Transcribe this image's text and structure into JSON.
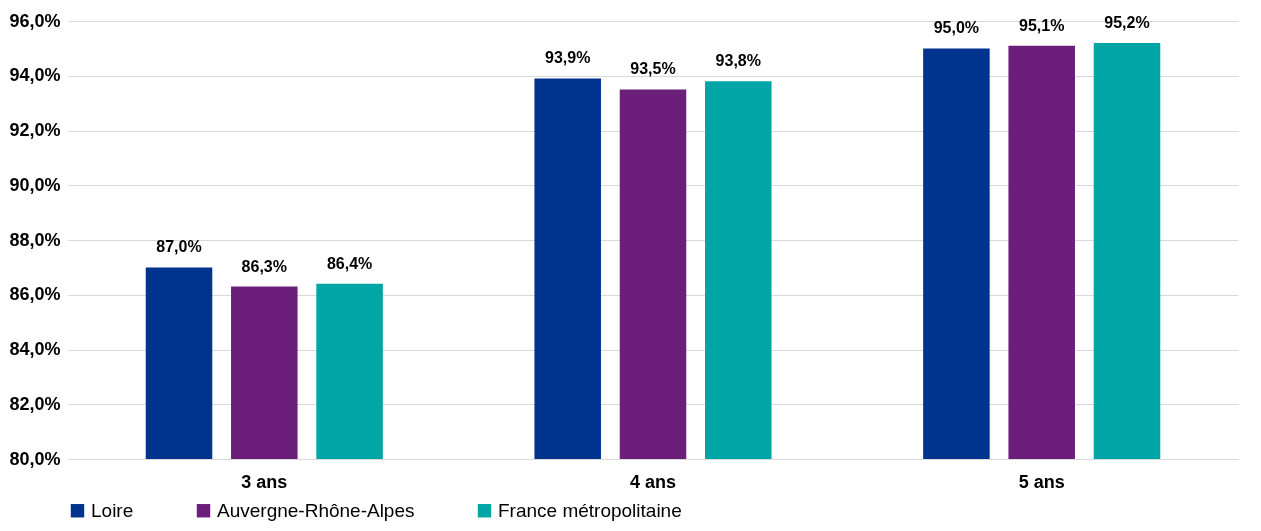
{
  "chart_data": {
    "type": "bar",
    "categories": [
      "3 ans",
      "4 ans",
      "5 ans"
    ],
    "series": [
      {
        "name": "Loire",
        "color": "#00338d",
        "values": [
          87.0,
          93.9,
          95.0
        ],
        "value_labels": [
          "87,0%",
          "93,9%",
          "95,0%"
        ]
      },
      {
        "name": "Auvergne-Rhône-Alpes",
        "color": "#6b1f7a",
        "values": [
          86.3,
          93.5,
          95.1
        ],
        "value_labels": [
          "86,3%",
          "93,5%",
          "95,1%"
        ]
      },
      {
        "name": "France métropolitaine",
        "color": "#00a5a5",
        "values": [
          86.4,
          93.8,
          95.2
        ],
        "value_labels": [
          "86,4%",
          "93,8%",
          "95,2%"
        ]
      }
    ],
    "ylim": [
      80,
      96
    ],
    "yticks": [
      {
        "value": 80,
        "label": "80,0%"
      },
      {
        "value": 82,
        "label": "82,0%"
      },
      {
        "value": 84,
        "label": "84,0%"
      },
      {
        "value": 86,
        "label": "86,0%"
      },
      {
        "value": 88,
        "label": "88,0%"
      },
      {
        "value": 90,
        "label": "90,0%"
      },
      {
        "value": 92,
        "label": "92,0%"
      },
      {
        "value": 94,
        "label": "94,0%"
      },
      {
        "value": 96,
        "label": "96,0%"
      }
    ],
    "grid": "y",
    "legend": "bottom"
  }
}
